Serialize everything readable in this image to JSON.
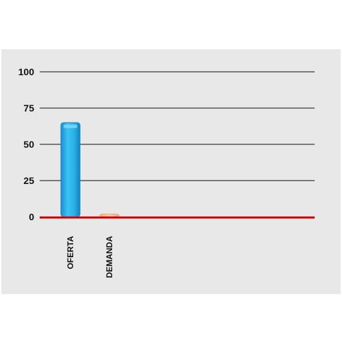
{
  "chart_data": {
    "type": "bar",
    "categories": [
      "OFERTA",
      "DEMANDA"
    ],
    "values": [
      65,
      1
    ],
    "ylim": [
      0,
      100
    ],
    "yticks": [
      0,
      25,
      50,
      75,
      100
    ],
    "title": "",
    "xlabel": "",
    "ylabel": "",
    "grid": true,
    "colors": {
      "bar_oferta": "#2ab0e8",
      "bar_demanda": "#f5c09a",
      "baseline": "#cc0000",
      "gridline": "#7a7a7a",
      "panel": "#e8e8e8"
    }
  }
}
